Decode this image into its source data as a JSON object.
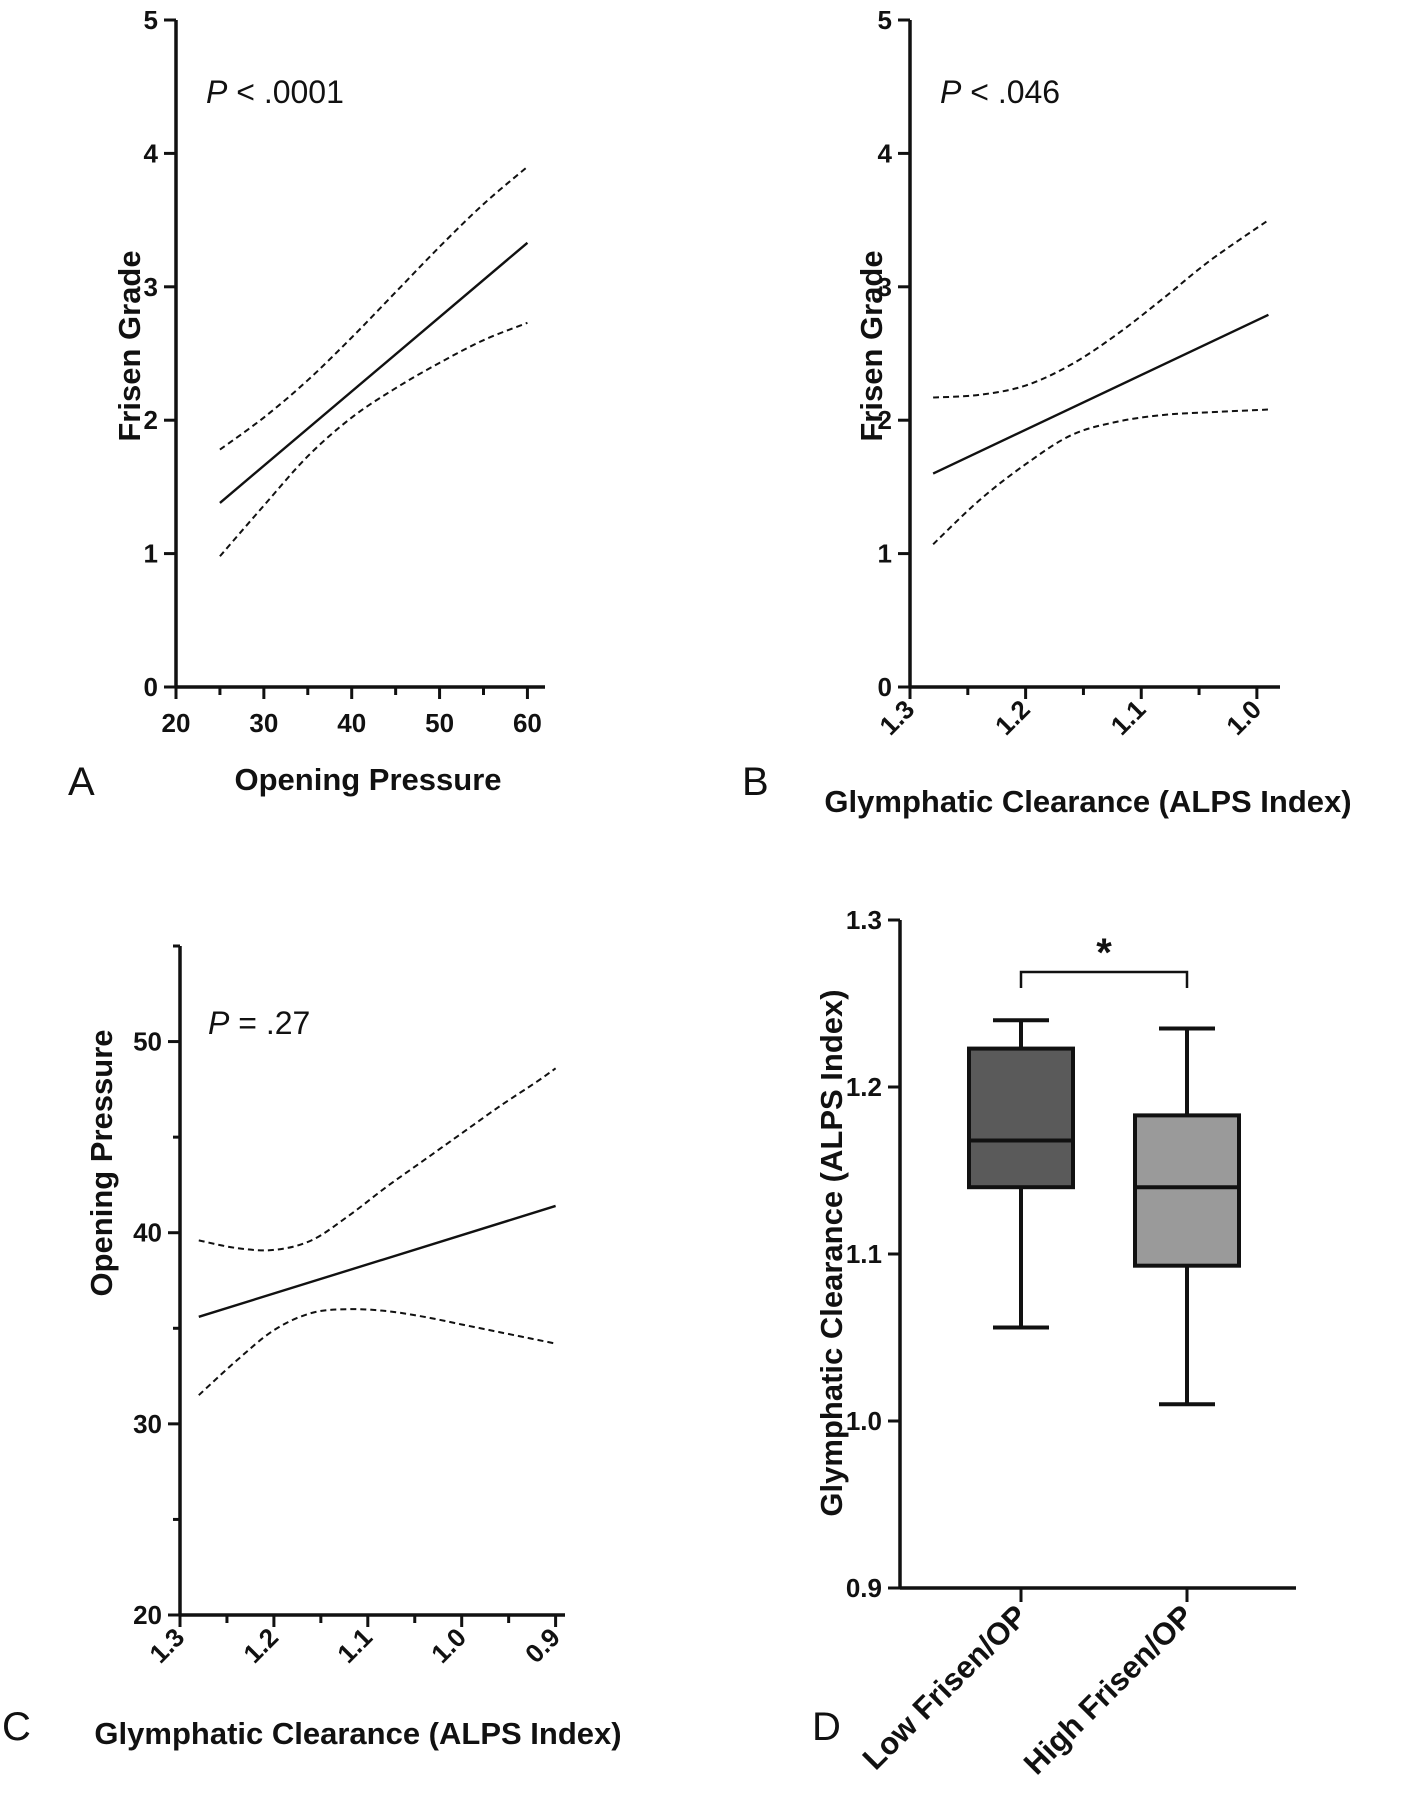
{
  "chart_data": [
    {
      "panel": "A",
      "type": "line",
      "xlabel": "Opening Pressure",
      "ylabel": "Frisen Grade",
      "xlim": [
        20,
        62
      ],
      "ylim": [
        0,
        5
      ],
      "xticks": [
        20,
        30,
        40,
        50,
        60
      ],
      "xtick_labels": [
        "20",
        "30",
        "40",
        "50",
        "60"
      ],
      "xminor": [
        25,
        35,
        45,
        55
      ],
      "yticks": [
        0,
        1,
        2,
        3,
        4,
        5
      ],
      "ytick_labels": [
        "0",
        "1",
        "2",
        "3",
        "4",
        "5"
      ],
      "annotation": {
        "p": "P",
        "rest": " < .0001"
      },
      "series": [
        {
          "style": "solid",
          "x": [
            25,
            60
          ],
          "y": [
            1.38,
            3.33
          ]
        },
        {
          "style": "dashed",
          "x": [
            25,
            30,
            35,
            40,
            45,
            50,
            55,
            60
          ],
          "y": [
            1.78,
            2.02,
            2.3,
            2.62,
            2.96,
            3.3,
            3.62,
            3.9
          ]
        },
        {
          "style": "dashed",
          "x": [
            25,
            30,
            35,
            40,
            45,
            50,
            55,
            60
          ],
          "y": [
            0.98,
            1.36,
            1.73,
            2.02,
            2.24,
            2.43,
            2.6,
            2.73
          ]
        }
      ]
    },
    {
      "panel": "B",
      "type": "line",
      "xlabel": "Glymphatic Clearance (ALPS Index)",
      "ylabel": "Frisen Grade",
      "xlim": [
        1.3,
        0.98
      ],
      "ylim": [
        0,
        5
      ],
      "xticks": [
        1.3,
        1.2,
        1.1,
        1.0
      ],
      "xtick_labels": [
        "1.3",
        "1.2",
        "1.1",
        "1.0"
      ],
      "xminor": [
        1.25,
        1.15,
        1.05
      ],
      "yticks": [
        0,
        1,
        2,
        3,
        4,
        5
      ],
      "ytick_labels": [
        "0",
        "1",
        "2",
        "3",
        "4",
        "5"
      ],
      "annotation": {
        "p": "P",
        "rest": " < .046"
      },
      "series": [
        {
          "style": "solid",
          "x": [
            1.28,
            0.99
          ],
          "y": [
            1.6,
            2.79
          ]
        },
        {
          "style": "dashed",
          "x": [
            1.28,
            1.24,
            1.2,
            1.16,
            1.12,
            1.08,
            1.04,
            0.99
          ],
          "y": [
            2.17,
            2.19,
            2.26,
            2.42,
            2.65,
            2.92,
            3.2,
            3.5
          ]
        },
        {
          "style": "dashed",
          "x": [
            1.28,
            1.24,
            1.2,
            1.16,
            1.12,
            1.08,
            1.04,
            0.99
          ],
          "y": [
            1.07,
            1.4,
            1.67,
            1.89,
            1.99,
            2.04,
            2.06,
            2.08
          ]
        }
      ]
    },
    {
      "panel": "C",
      "type": "line",
      "xlabel": "Glymphatic Clearance (ALPS Index)",
      "ylabel": "Opening Pressure",
      "xlim": [
        1.3,
        0.89
      ],
      "ylim": [
        20,
        55
      ],
      "xticks": [
        1.3,
        1.2,
        1.1,
        1.0,
        0.9
      ],
      "xtick_labels": [
        "1.3",
        "1.2",
        "1.1",
        "1.0",
        "0.9"
      ],
      "xminor": [
        1.25,
        1.15,
        1.05,
        0.95
      ],
      "yticks": [
        20,
        30,
        40,
        50
      ],
      "ytick_labels": [
        "20",
        "30",
        "40",
        "50"
      ],
      "yminor": [
        25,
        35,
        45,
        55
      ],
      "annotation": {
        "p": "P",
        "rest": " = .27"
      },
      "series": [
        {
          "style": "solid",
          "x": [
            1.28,
            0.9
          ],
          "y": [
            35.6,
            41.4
          ]
        },
        {
          "style": "dashed",
          "x": [
            1.28,
            1.24,
            1.2,
            1.16,
            1.12,
            1.08,
            1.04,
            1.0,
            0.96,
            0.92,
            0.9
          ],
          "y": [
            39.6,
            39.2,
            39.1,
            39.6,
            40.9,
            42.4,
            43.8,
            45.2,
            46.6,
            47.9,
            48.6
          ]
        },
        {
          "style": "dashed",
          "x": [
            1.28,
            1.24,
            1.2,
            1.16,
            1.12,
            1.08,
            1.04,
            1.0,
            0.96,
            0.92,
            0.9
          ],
          "y": [
            31.5,
            33.3,
            34.9,
            35.8,
            36.0,
            35.9,
            35.6,
            35.2,
            34.8,
            34.4,
            34.2
          ]
        }
      ]
    },
    {
      "panel": "D",
      "type": "box",
      "ylabel": "Glymphatic Clearance (ALPS Index)",
      "ylim": [
        0.9,
        1.3
      ],
      "yticks": [
        0.9,
        1.0,
        1.1,
        1.2,
        1.3
      ],
      "ytick_labels": [
        "0.9",
        "1.0",
        "1.1",
        "1.2",
        "1.3"
      ],
      "categories": [
        "Low Frisen/OP",
        "High Frisen/OP"
      ],
      "boxes": [
        {
          "category": "Low Frisen/OP",
          "min": 1.056,
          "q1": 1.14,
          "median": 1.168,
          "q3": 1.223,
          "max": 1.24,
          "color": "#5a5a5a"
        },
        {
          "category": "High Frisen/OP",
          "min": 1.01,
          "q1": 1.093,
          "median": 1.14,
          "q3": 1.183,
          "max": 1.235,
          "color": "#9a9a9a"
        }
      ],
      "significance": "*"
    }
  ],
  "panel_letters": [
    "A",
    "B",
    "C",
    "D"
  ]
}
